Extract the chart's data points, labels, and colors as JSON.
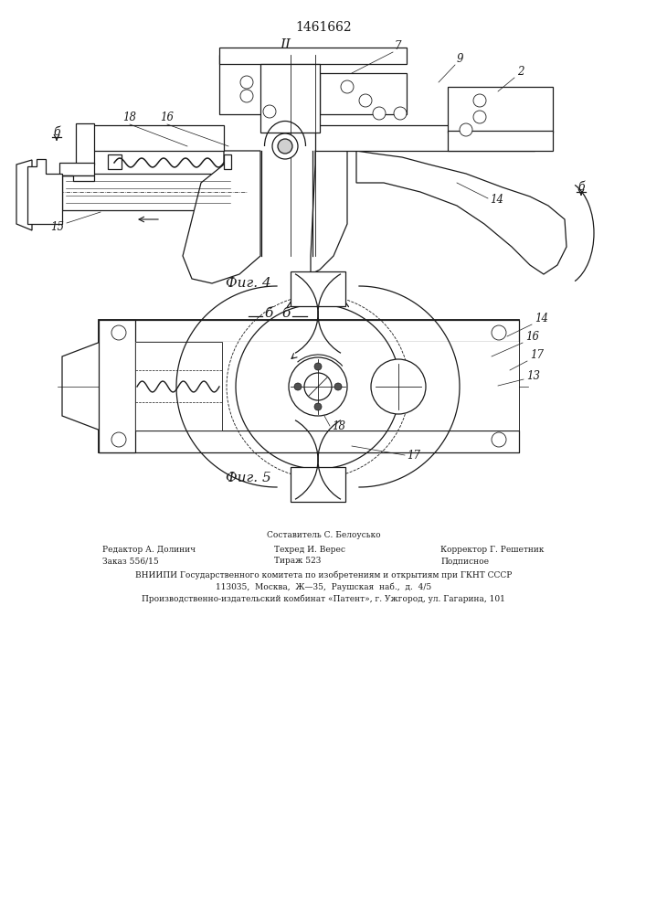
{
  "patent_number": "1461662",
  "fig4_label": "Фиг. 4",
  "fig5_label": "Фиг. 5",
  "section_II": "II",
  "section_BB": "б  б",
  "label_B_left": "б",
  "label_B_right": "б",
  "footer_line1": "Составитель С. Белоусько",
  "footer_col1_row1": "Редактор А. Долинич",
  "footer_col2_row1": "Техред И. Верес",
  "footer_col3_row1": "Корректор Г. Решетник",
  "footer_col1_row2": "Заказ 556/15",
  "footer_col2_row2": "Тираж 523",
  "footer_col3_row2": "Подписное",
  "footer_line4": "ВНИИПИ Государственного комитета по изобретениям и открытиям при ГКНТ СССР",
  "footer_line5": "113035,  Москва,  Ж—35,  Раушская  наб.,  д.  4/5",
  "footer_line6": "Производственно-издательский комбинат «Патент», г. Ужгород, ул. Гагарина, 101",
  "bg_color": "#ffffff",
  "lc": "#1a1a1a"
}
